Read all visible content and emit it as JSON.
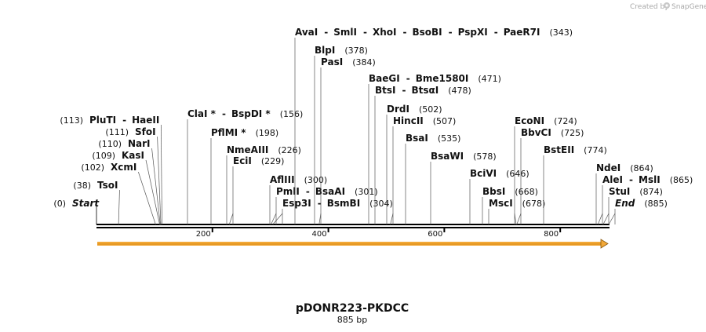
{
  "credit": {
    "text": "Created by",
    "brand": "SnapGene"
  },
  "map": {
    "name": "pDONR223-PKDCC",
    "length_label": "885 bp",
    "length": 885,
    "ticks": [
      "200",
      "400",
      "600",
      "800"
    ],
    "feature_arrow_color": "#f2a838",
    "sites": [
      {
        "pos": 0,
        "pos_label": "(0)",
        "names": [
          "Start"
        ],
        "italic": true,
        "side": "left"
      },
      {
        "pos": 38,
        "pos_label": "(38)",
        "names": [
          "TsoI"
        ],
        "side": "left"
      },
      {
        "pos": 102,
        "pos_label": "(102)",
        "names": [
          "XcmI"
        ],
        "side": "left"
      },
      {
        "pos": 109,
        "pos_label": "(109)",
        "names": [
          "KasI"
        ],
        "side": "left"
      },
      {
        "pos": 110,
        "pos_label": "(110)",
        "names": [
          "NarI"
        ],
        "side": "left"
      },
      {
        "pos": 111,
        "pos_label": "(111)",
        "names": [
          "SfoI"
        ],
        "side": "left"
      },
      {
        "pos": 113,
        "pos_label": "(113)",
        "names": [
          "PluTI",
          "HaeII"
        ],
        "side": "left"
      },
      {
        "pos": 156,
        "pos_label": "(156)",
        "names": [
          "ClaI *",
          "BspDI *"
        ],
        "side": "right"
      },
      {
        "pos": 198,
        "pos_label": "(198)",
        "names": [
          "PflMI *"
        ],
        "side": "right"
      },
      {
        "pos": 226,
        "pos_label": "(226)",
        "names": [
          "NmeAIII"
        ],
        "side": "right"
      },
      {
        "pos": 229,
        "pos_label": "(229)",
        "names": [
          "EciI"
        ],
        "side": "right"
      },
      {
        "pos": 300,
        "pos_label": "(300)",
        "names": [
          "AflIII"
        ],
        "side": "right"
      },
      {
        "pos": 301,
        "pos_label": "(301)",
        "names": [
          "PmlI",
          "BsaAI"
        ],
        "side": "right"
      },
      {
        "pos": 304,
        "pos_label": "(304)",
        "names": [
          "Esp3I",
          "BsmBI"
        ],
        "side": "right"
      },
      {
        "pos": 343,
        "pos_label": "(343)",
        "names": [
          "AvaI",
          "SmlI",
          "XhoI",
          "BsoBI",
          "PspXI",
          "PaeR7I"
        ],
        "side": "right"
      },
      {
        "pos": 378,
        "pos_label": "(378)",
        "names": [
          "BlpI"
        ],
        "side": "right"
      },
      {
        "pos": 384,
        "pos_label": "(384)",
        "names": [
          "PasI"
        ],
        "side": "right"
      },
      {
        "pos": 471,
        "pos_label": "(471)",
        "names": [
          "BaeGI",
          "Bme1580I"
        ],
        "side": "right"
      },
      {
        "pos": 478,
        "pos_label": "(478)",
        "names": [
          "BtsI",
          "BtsαI"
        ],
        "side": "right"
      },
      {
        "pos": 502,
        "pos_label": "(502)",
        "names": [
          "DrdI"
        ],
        "side": "right"
      },
      {
        "pos": 507,
        "pos_label": "(507)",
        "names": [
          "HincII"
        ],
        "side": "right"
      },
      {
        "pos": 535,
        "pos_label": "(535)",
        "names": [
          "BsaI"
        ],
        "side": "right"
      },
      {
        "pos": 578,
        "pos_label": "(578)",
        "names": [
          "BsaWI"
        ],
        "side": "right"
      },
      {
        "pos": 646,
        "pos_label": "(646)",
        "names": [
          "BciVI"
        ],
        "side": "right"
      },
      {
        "pos": 668,
        "pos_label": "(668)",
        "names": [
          "BbsI"
        ],
        "side": "right"
      },
      {
        "pos": 678,
        "pos_label": "(678)",
        "names": [
          "MscI"
        ],
        "side": "right"
      },
      {
        "pos": 724,
        "pos_label": "(724)",
        "names": [
          "EcoNI"
        ],
        "side": "right"
      },
      {
        "pos": 725,
        "pos_label": "(725)",
        "names": [
          "BbvCI"
        ],
        "side": "right"
      },
      {
        "pos": 774,
        "pos_label": "(774)",
        "names": [
          "BstEII"
        ],
        "side": "right"
      },
      {
        "pos": 864,
        "pos_label": "(864)",
        "names": [
          "NdeI"
        ],
        "side": "right"
      },
      {
        "pos": 865,
        "pos_label": "(865)",
        "names": [
          "AleI",
          "MslI"
        ],
        "side": "right"
      },
      {
        "pos": 874,
        "pos_label": "(874)",
        "names": [
          "StuI"
        ],
        "side": "right"
      },
      {
        "pos": 885,
        "pos_label": "(885)",
        "names": [
          "End"
        ],
        "italic": true,
        "side": "right"
      }
    ]
  }
}
